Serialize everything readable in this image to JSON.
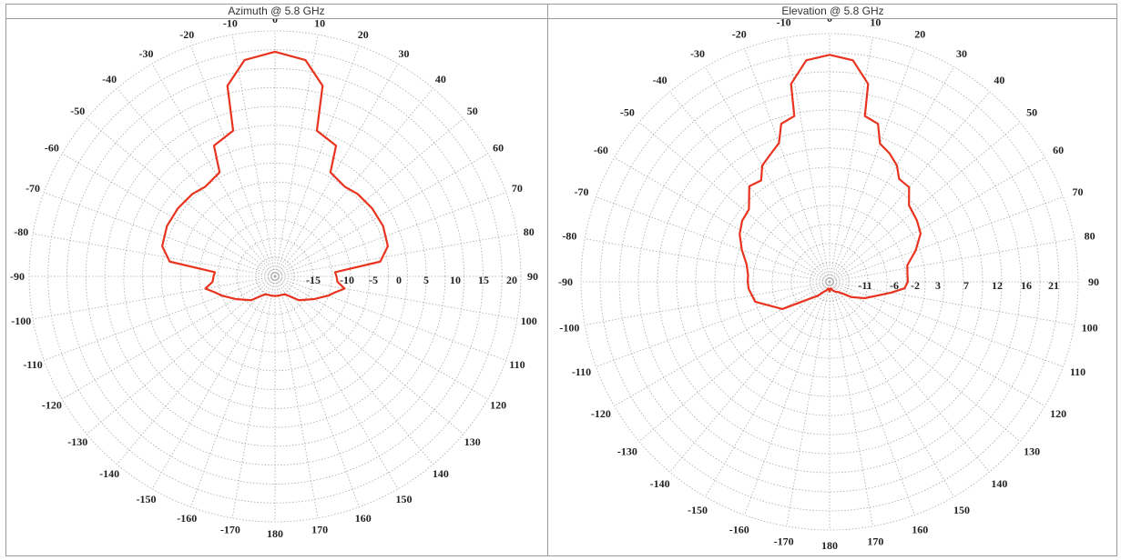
{
  "colors": {
    "pattern": "#e8331f",
    "grid": "#aaaaaa",
    "frame": "#9a9a9a"
  },
  "panels": [
    {
      "title": "Azimuth @ 5.8 GHz"
    },
    {
      "title": "Elevation @ 5.8 GHz"
    }
  ],
  "chart_data": [
    {
      "type": "polar",
      "title": "Azimuth @ 5.8 GHz",
      "angle_labels": [
        "0",
        "10",
        "20",
        "30",
        "40",
        "50",
        "60",
        "70",
        "80",
        "90",
        "100",
        "110",
        "120",
        "130",
        "140",
        "150",
        "160",
        "170",
        "180",
        "-170",
        "-160",
        "-150",
        "-140",
        "-130",
        "-120",
        "-110",
        "-100",
        "-90",
        "-80",
        "-70",
        "-60",
        "-50",
        "-40",
        "-30",
        "-20",
        "-10"
      ],
      "radial_labels": [
        "-15",
        "-10",
        "-5",
        "0",
        "5",
        "10",
        "15",
        "20"
      ],
      "radial_range": [
        -20,
        20
      ],
      "grid": true,
      "series": [
        {
          "values_by_angle": [
            [
              0,
              16.6
            ],
            [
              8,
              15.6
            ],
            [
              14,
              12.0
            ],
            [
              16,
              4.7
            ],
            [
              25,
              3.5
            ],
            [
              28,
              -0.8
            ],
            [
              38,
              -1.5
            ],
            [
              45,
              -1.0
            ],
            [
              55,
              -0.7
            ],
            [
              65,
              -0.6
            ],
            [
              75,
              -1.0
            ],
            [
              82,
              -2.7
            ],
            [
              86,
              -10.2
            ],
            [
              90,
              -10.0
            ],
            [
              95,
              -9.8
            ],
            [
              100,
              -8.5
            ],
            [
              105,
              -9.9
            ],
            [
              110,
              -10.8
            ],
            [
              120,
              -12.6
            ],
            [
              135,
              -14.5
            ],
            [
              150,
              -16.6
            ],
            [
              160,
              -16.8
            ],
            [
              170,
              -16.8
            ],
            [
              180,
              -16.8
            ],
            [
              -170,
              -16.8
            ],
            [
              -160,
              -16.8
            ],
            [
              -150,
              -16.6
            ],
            [
              -135,
              -14.5
            ],
            [
              -120,
              -12.6
            ],
            [
              -110,
              -10.8
            ],
            [
              -105,
              -9.9
            ],
            [
              -100,
              -8.5
            ],
            [
              -95,
              -9.8
            ],
            [
              -90,
              -10.0
            ],
            [
              -86,
              -10.2
            ],
            [
              -82,
              -2.7
            ],
            [
              -75,
              -1.0
            ],
            [
              -65,
              -0.6
            ],
            [
              -55,
              -0.7
            ],
            [
              -45,
              -1.0
            ],
            [
              -38,
              -1.5
            ],
            [
              -28,
              -0.8
            ],
            [
              -25,
              3.5
            ],
            [
              -16,
              4.7
            ],
            [
              -14,
              12.0
            ],
            [
              -8,
              15.6
            ],
            [
              0,
              16.6
            ]
          ]
        }
      ]
    },
    {
      "type": "polar",
      "title": "Elevation @ 5.8 GHz",
      "angle_labels": [
        "0",
        "10",
        "20",
        "30",
        "40",
        "50",
        "60",
        "70",
        "80",
        "90",
        "100",
        "110",
        "120",
        "130",
        "140",
        "150",
        "160",
        "170",
        "180",
        "-170",
        "-160",
        "-150",
        "-140",
        "-130",
        "-120",
        "-110",
        "-100",
        "-90",
        "-80",
        "-70",
        "-60",
        "-50",
        "-40",
        "-30",
        "-20",
        "-10"
      ],
      "radial_labels": [
        "-11",
        "-6",
        "-2",
        "3",
        "7",
        "12",
        "16",
        "21"
      ],
      "radial_range": [
        -20,
        21
      ],
      "grid": true,
      "series": [
        {
          "values_by_angle": [
            [
              0,
              17.5
            ],
            [
              6,
              16.8
            ],
            [
              11,
              13.3
            ],
            [
              12,
              8.0
            ],
            [
              17,
              7.3
            ],
            [
              20,
              4.3
            ],
            [
              25,
              3.4
            ],
            [
              30,
              2.2
            ],
            [
              34,
              0.5
            ],
            [
              40,
              0.4
            ],
            [
              46,
              -1.8
            ],
            [
              55,
              -2.4
            ],
            [
              62,
              -3.0
            ],
            [
              70,
              -4.9
            ],
            [
              78,
              -6.9
            ],
            [
              85,
              -7.1
            ],
            [
              90,
              -7.1
            ],
            [
              95,
              -7.6
            ],
            [
              100,
              -9.7
            ],
            [
              115,
              -13.6
            ],
            [
              125,
              -15.6
            ],
            [
              130,
              -16.8
            ],
            [
              140,
              -17.8
            ],
            [
              150,
              -18.1
            ],
            [
              160,
              -18.5
            ],
            [
              170,
              -18.9
            ],
            [
              180,
              -18.4
            ],
            [
              -170,
              -18.9
            ],
            [
              -160,
              -18.5
            ],
            [
              -150,
              -18.1
            ],
            [
              -140,
              -17.0
            ],
            [
              -130,
              -15.6
            ],
            [
              -120,
              -11.0
            ],
            [
              -105,
              -7.3
            ],
            [
              -95,
              -6.6
            ],
            [
              -90,
              -6.5
            ],
            [
              -85,
              -6.5
            ],
            [
              -78,
              -6.0
            ],
            [
              -70,
              -4.6
            ],
            [
              -62,
              -3.2
            ],
            [
              -55,
              -2.4
            ],
            [
              -48,
              -2.1
            ],
            [
              -40,
              0.6
            ],
            [
              -34,
              0.2
            ],
            [
              -30,
              2.2
            ],
            [
              -24,
              3.4
            ],
            [
              -20,
              4.4
            ],
            [
              -17,
              7.3
            ],
            [
              -12,
              8.0
            ],
            [
              -11,
              13.3
            ],
            [
              -6,
              16.8
            ],
            [
              0,
              17.5
            ]
          ]
        }
      ]
    }
  ]
}
